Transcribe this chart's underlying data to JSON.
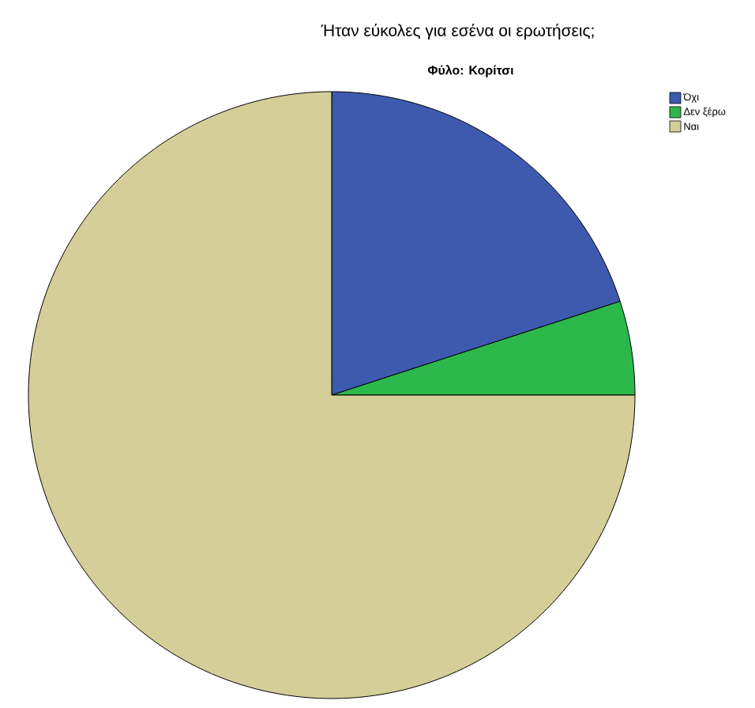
{
  "chart_data": {
    "type": "pie",
    "title": "Ήταν εύκολες για εσένα οι ερωτήσεις;",
    "subtitle": "Φύλο: Κορίτσι",
    "categories": [
      "Όχι",
      "Δεν ξέρω",
      "Ναι"
    ],
    "values": [
      20,
      5,
      75
    ],
    "colors": [
      "#3d5aae",
      "#2db84b",
      "#d4cf98"
    ],
    "legend": "top right"
  }
}
